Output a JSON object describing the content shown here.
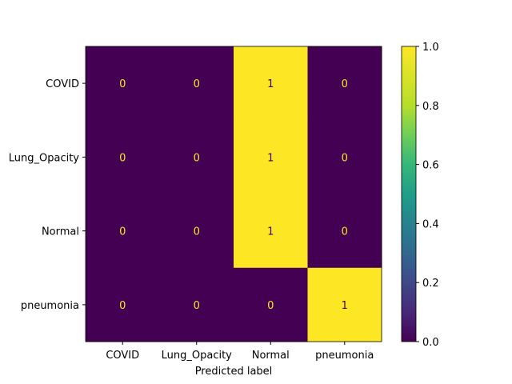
{
  "chart_data": {
    "type": "heatmap",
    "title": "",
    "xlabel": "Predicted label",
    "ylabel": "",
    "x_categories": [
      "COVID",
      "Lung_Opacity",
      "Normal",
      "pneumonia"
    ],
    "y_categories": [
      "COVID",
      "Lung_Opacity",
      "Normal",
      "pneumonia"
    ],
    "values": [
      [
        0,
        0,
        1,
        0
      ],
      [
        0,
        0,
        1,
        0
      ],
      [
        0,
        0,
        1,
        0
      ],
      [
        0,
        0,
        0,
        1
      ]
    ],
    "colorbar": {
      "range": [
        0.0,
        1.0
      ],
      "ticks": [
        "0.0",
        "0.2",
        "0.4",
        "0.6",
        "0.8",
        "1.0"
      ],
      "colormap": "viridis"
    },
    "colors": {
      "low": "#440154",
      "high": "#fde725"
    }
  }
}
